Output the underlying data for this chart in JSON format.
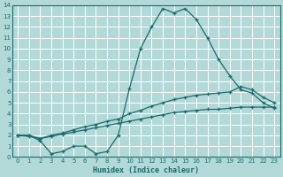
{
  "xlabel": "Humidex (Indice chaleur)",
  "xlim": [
    -0.5,
    23.5
  ],
  "ylim": [
    0,
    14
  ],
  "xticks": [
    0,
    1,
    2,
    3,
    4,
    5,
    6,
    7,
    8,
    9,
    10,
    11,
    12,
    13,
    14,
    15,
    16,
    17,
    18,
    19,
    20,
    21,
    22,
    23
  ],
  "yticks": [
    0,
    1,
    2,
    3,
    4,
    5,
    6,
    7,
    8,
    9,
    10,
    11,
    12,
    13,
    14
  ],
  "bg_color": "#b2d8d8",
  "grid_color": "#ffffff",
  "line_color": "#1a6b6b",
  "line1_x": [
    0,
    1,
    2,
    3,
    4,
    5,
    6,
    7,
    8,
    9,
    10,
    11,
    12,
    13,
    14,
    15,
    16,
    17,
    18,
    19,
    20,
    21,
    22,
    23
  ],
  "line1_y": [
    2.0,
    2.0,
    1.5,
    0.3,
    0.5,
    1.0,
    1.0,
    0.3,
    0.5,
    2.0,
    6.3,
    10.0,
    12.0,
    13.7,
    13.3,
    13.7,
    12.7,
    11.0,
    9.0,
    7.5,
    6.2,
    5.9,
    5.0,
    4.5
  ],
  "line2_x": [
    0,
    1,
    2,
    3,
    4,
    5,
    6,
    7,
    8,
    9,
    10,
    11,
    12,
    13,
    14,
    15,
    16,
    17,
    18,
    19,
    20,
    21,
    22,
    23
  ],
  "line2_y": [
    2.0,
    2.0,
    1.7,
    2.0,
    2.2,
    2.5,
    2.8,
    3.0,
    3.3,
    3.5,
    4.0,
    4.3,
    4.7,
    5.0,
    5.3,
    5.5,
    5.7,
    5.8,
    5.9,
    6.0,
    6.5,
    6.2,
    5.5,
    5.0
  ],
  "line3_x": [
    0,
    1,
    2,
    3,
    4,
    5,
    6,
    7,
    8,
    9,
    10,
    11,
    12,
    13,
    14,
    15,
    16,
    17,
    18,
    19,
    20,
    21,
    22,
    23
  ],
  "line3_y": [
    2.0,
    1.9,
    1.7,
    1.9,
    2.1,
    2.3,
    2.5,
    2.7,
    2.9,
    3.1,
    3.3,
    3.5,
    3.7,
    3.9,
    4.1,
    4.2,
    4.3,
    4.4,
    4.4,
    4.5,
    4.6,
    4.6,
    4.6,
    4.6
  ]
}
